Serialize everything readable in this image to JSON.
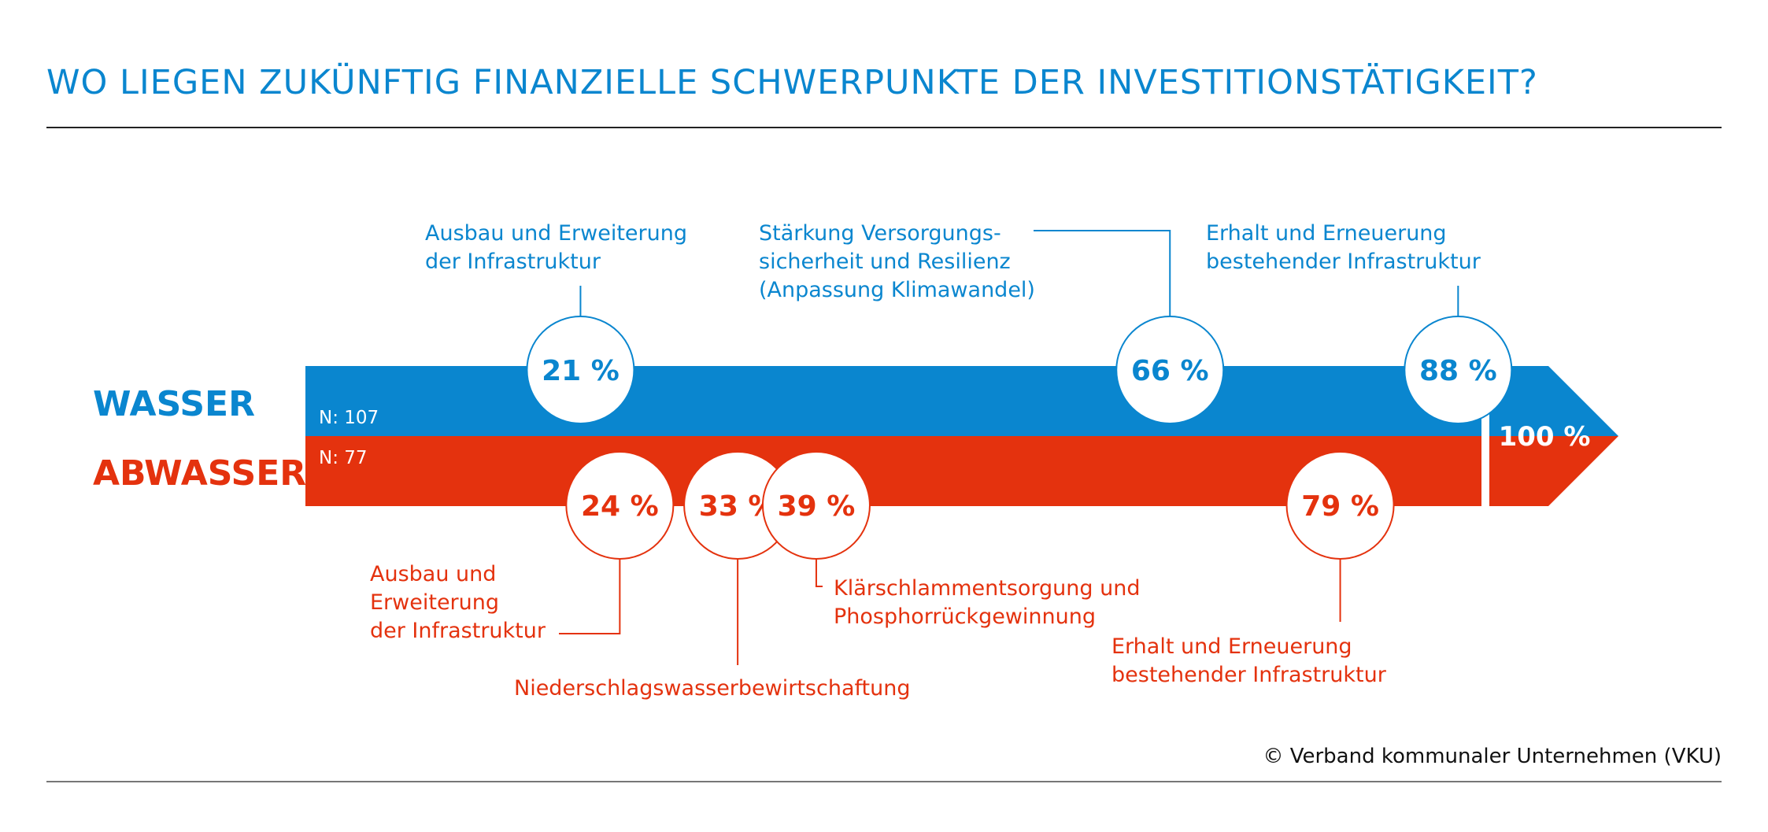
{
  "title": "WO LIEGEN ZUKÜNFTIG FINANZIELLE SCHWERPUNKTE DER INVESTITIONSTÄTIGKEIT?",
  "source": "© Verband kommunaler Unternehmen (VKU)",
  "colors": {
    "wasser": "#0a86cf",
    "abwasser": "#e4320e"
  },
  "chart_data": {
    "type": "bar",
    "scale_max_label": "100 %",
    "series": [
      {
        "name": "WASSER",
        "n_label": "N: 107",
        "color": "#0a86cf",
        "points": [
          {
            "value": 21,
            "label": "21 %",
            "text": [
              "Ausbau und Erweiterung",
              "der Infrastruktur"
            ]
          },
          {
            "value": 66,
            "label": "66 %",
            "text": [
              "Stärkung Versorgungs-",
              "sicherheit und Resilienz",
              "(Anpassung Klimawandel)"
            ]
          },
          {
            "value": 88,
            "label": "88 %",
            "text": [
              "Erhalt und Erneuerung",
              "bestehender Infrastruktur"
            ]
          }
        ]
      },
      {
        "name": "ABWASSER",
        "n_label": "N: 77",
        "color": "#e4320e",
        "points": [
          {
            "value": 24,
            "label": "24 %",
            "text": [
              "Ausbau und",
              "Erweiterung",
              "der Infrastruktur"
            ]
          },
          {
            "value": 33,
            "label": "33 %",
            "text": [
              "Niederschlagswasserbewirtschaftung"
            ]
          },
          {
            "value": 39,
            "label": "39 %",
            "text": [
              "Klärschlammentsorgung und",
              "Phosphorrückgewinnung"
            ]
          },
          {
            "value": 79,
            "label": "79 %",
            "text": [
              "Erhalt und Erneuerung",
              "bestehender Infrastruktur"
            ]
          }
        ]
      }
    ]
  }
}
